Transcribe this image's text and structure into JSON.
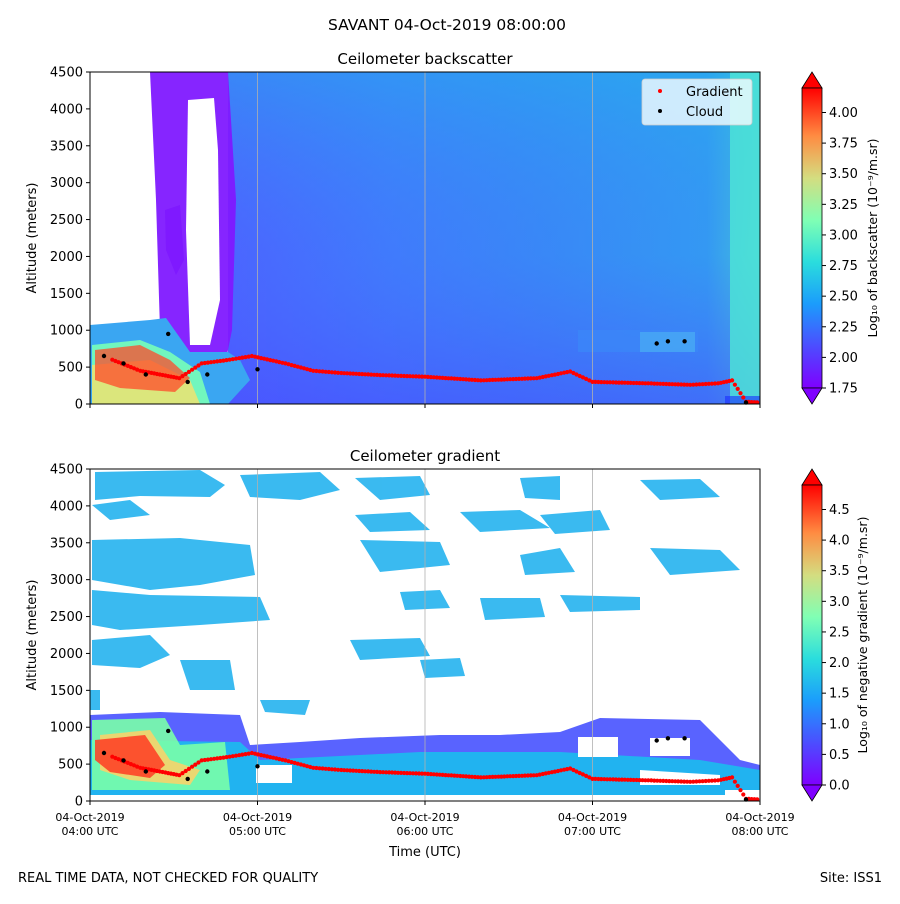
{
  "figure": {
    "suptitle": "SAVANT 04-Oct-2019 08:00:00",
    "footer_left": "REAL TIME DATA, NOT CHECKED FOR QUALITY",
    "footer_right": "Site: ISS1"
  },
  "chart_data": [
    {
      "type": "heatmap",
      "title": "Ceilometer backscatter",
      "xlabel": "",
      "ylabel": "Altitude (meters)",
      "xlim": [
        "2019-10-04T04:00:00Z",
        "2019-10-04T08:00:00Z"
      ],
      "ylim": [
        0,
        4500
      ],
      "x_ticks": [
        {
          "date": "04-Oct-2019",
          "time": "04:00 UTC"
        },
        {
          "date": "04-Oct-2019",
          "time": "05:00 UTC"
        },
        {
          "date": "04-Oct-2019",
          "time": "06:00 UTC"
        },
        {
          "date": "04-Oct-2019",
          "time": "07:00 UTC"
        },
        {
          "date": "04-Oct-2019",
          "time": "08:00 UTC"
        }
      ],
      "x_tick_labels_visible": false,
      "y_ticks": [
        0,
        500,
        1000,
        1500,
        2000,
        2500,
        3000,
        3500,
        4000,
        4500
      ],
      "grid": "vertical",
      "legend": {
        "placement": "top-right",
        "entries": [
          {
            "label": "Gradient",
            "color": "#ff0000"
          },
          {
            "label": "Cloud",
            "color": "#000000"
          }
        ]
      },
      "colorbar": {
        "label": "Log₁₀ of backscatter (10⁻⁹/m.sr)",
        "range": [
          1.75,
          4.2
        ],
        "ticks": [
          "1.75",
          "2.00",
          "2.25",
          "2.50",
          "2.75",
          "3.00",
          "3.25",
          "3.50",
          "3.75",
          "4.00"
        ],
        "colormap": "rainbow",
        "extend": "both"
      },
      "gradient_series": {
        "name": "Gradient",
        "points": [
          [
            "04:08",
            600
          ],
          [
            "04:18",
            450
          ],
          [
            "04:25",
            400
          ],
          [
            "04:32",
            350
          ],
          [
            "04:40",
            550
          ],
          [
            "04:50",
            600
          ],
          [
            "04:58",
            650
          ],
          [
            "05:10",
            550
          ],
          [
            "05:20",
            450
          ],
          [
            "05:30",
            420
          ],
          [
            "05:45",
            390
          ],
          [
            "06:00",
            370
          ],
          [
            "06:20",
            320
          ],
          [
            "06:40",
            350
          ],
          [
            "06:52",
            440
          ],
          [
            "07:00",
            300
          ],
          [
            "07:20",
            280
          ],
          [
            "07:35",
            260
          ],
          [
            "07:45",
            280
          ],
          [
            "07:50",
            320
          ],
          [
            "07:55",
            30
          ],
          [
            "08:00",
            20
          ]
        ]
      },
      "cloud_series": {
        "name": "Cloud",
        "points": [
          [
            "04:05",
            650
          ],
          [
            "04:12",
            550
          ],
          [
            "04:20",
            400
          ],
          [
            "04:28",
            950
          ],
          [
            "04:35",
            300
          ],
          [
            "04:42",
            400
          ],
          [
            "05:00",
            470
          ],
          [
            "07:23",
            820
          ],
          [
            "07:27",
            850
          ],
          [
            "07:33",
            850
          ],
          [
            "07:55",
            20
          ]
        ]
      }
    },
    {
      "type": "heatmap",
      "title": "Ceilometer gradient",
      "xlabel": "Time (UTC)",
      "ylabel": "Altitude (meters)",
      "xlim": [
        "2019-10-04T04:00:00Z",
        "2019-10-04T08:00:00Z"
      ],
      "ylim": [
        0,
        4500
      ],
      "x_ticks": [
        {
          "date": "04-Oct-2019",
          "time": "04:00 UTC"
        },
        {
          "date": "04-Oct-2019",
          "time": "05:00 UTC"
        },
        {
          "date": "04-Oct-2019",
          "time": "06:00 UTC"
        },
        {
          "date": "04-Oct-2019",
          "time": "07:00 UTC"
        },
        {
          "date": "04-Oct-2019",
          "time": "08:00 UTC"
        }
      ],
      "y_ticks": [
        0,
        500,
        1000,
        1500,
        2000,
        2500,
        3000,
        3500,
        4000,
        4500
      ],
      "grid": "vertical",
      "colorbar": {
        "label": "Log₁₀ of negative gradient (10⁻⁹/m.sr)",
        "range": [
          0,
          4.9
        ],
        "ticks": [
          "0.0",
          "0.5",
          "1.0",
          "1.5",
          "2.0",
          "2.5",
          "3.0",
          "3.5",
          "4.0",
          "4.5"
        ],
        "colormap": "rainbow",
        "extend": "both"
      },
      "gradient_series": {
        "name": "Gradient",
        "points": [
          [
            "04:08",
            600
          ],
          [
            "04:18",
            450
          ],
          [
            "04:25",
            400
          ],
          [
            "04:32",
            350
          ],
          [
            "04:40",
            550
          ],
          [
            "04:50",
            600
          ],
          [
            "04:58",
            650
          ],
          [
            "05:10",
            550
          ],
          [
            "05:20",
            450
          ],
          [
            "05:30",
            420
          ],
          [
            "05:45",
            390
          ],
          [
            "06:00",
            370
          ],
          [
            "06:20",
            320
          ],
          [
            "06:40",
            350
          ],
          [
            "06:52",
            440
          ],
          [
            "07:00",
            300
          ],
          [
            "07:20",
            280
          ],
          [
            "07:35",
            260
          ],
          [
            "07:45",
            280
          ],
          [
            "07:50",
            320
          ],
          [
            "07:55",
            30
          ],
          [
            "08:00",
            20
          ]
        ]
      },
      "cloud_series": {
        "name": "Cloud",
        "points": [
          [
            "04:05",
            650
          ],
          [
            "04:12",
            550
          ],
          [
            "04:20",
            400
          ],
          [
            "04:28",
            950
          ],
          [
            "04:35",
            300
          ],
          [
            "04:42",
            400
          ],
          [
            "05:00",
            470
          ],
          [
            "07:23",
            820
          ],
          [
            "07:27",
            850
          ],
          [
            "07:33",
            850
          ],
          [
            "07:55",
            20
          ]
        ]
      }
    }
  ]
}
